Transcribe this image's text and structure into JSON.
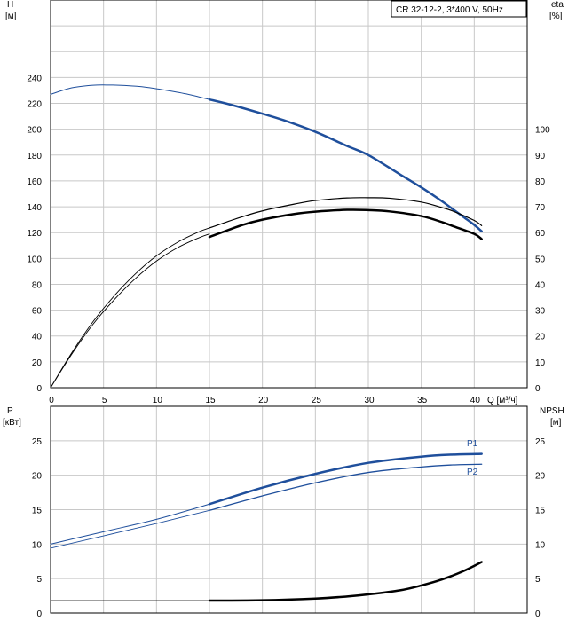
{
  "title_box": "CR 32-12-2, 3*400 V, 50Hz",
  "colors": {
    "blue": "#1f4f9c",
    "black": "#000000",
    "grid": "#c8c8c8"
  },
  "chart_data": [
    {
      "type": "line",
      "name": "upper",
      "left_axis": {
        "label_line1": "H",
        "label_line2": "[м]",
        "ticks": [
          0,
          20,
          40,
          60,
          80,
          100,
          120,
          140,
          160,
          180,
          200,
          220,
          240
        ],
        "ylim": [
          0,
          300
        ]
      },
      "right_axis": {
        "label_line1": "eta",
        "label_line2": "[%]",
        "ticks": [
          0,
          10,
          20,
          30,
          40,
          50,
          60,
          70,
          80,
          90,
          100
        ],
        "ylim": [
          0,
          150
        ]
      },
      "x_axis": {
        "label": "Q [м³/ч]",
        "ticks": [
          0,
          5,
          10,
          15,
          20,
          25,
          30,
          35,
          40
        ],
        "xlim": [
          0,
          45
        ]
      },
      "series": [
        {
          "key": "H_thin",
          "axis": "left",
          "color": "blue",
          "width": 1,
          "x": [
            0,
            2,
            4,
            5.5,
            7,
            9,
            11,
            13,
            15
          ],
          "y": [
            227,
            232,
            234,
            234.2,
            233.8,
            232.5,
            230,
            227,
            223
          ]
        },
        {
          "key": "H_thick",
          "axis": "left",
          "color": "blue",
          "width": 2.5,
          "x": [
            15,
            17,
            20,
            22,
            25,
            28,
            30,
            33,
            35,
            37,
            38,
            39,
            40,
            40.7
          ],
          "y": [
            223,
            219,
            212,
            207,
            198,
            187,
            180,
            165,
            155,
            144,
            138,
            132,
            126,
            121
          ]
        },
        {
          "key": "eta1_thin",
          "axis": "right",
          "color": "black",
          "width": 0.9,
          "x": [
            0,
            2,
            4,
            6,
            8,
            10,
            12,
            14,
            15
          ],
          "y": [
            0,
            13.5,
            25.5,
            35.5,
            44,
            51,
            56.3,
            60.3,
            61.8
          ]
        },
        {
          "key": "eta1_thick",
          "axis": "right",
          "color": "black",
          "width": 1.2,
          "x": [
            15,
            18,
            20,
            23,
            25,
            28,
            30,
            32,
            35,
            37,
            38,
            40,
            40.7
          ],
          "y": [
            61.8,
            66,
            68.4,
            71,
            72.4,
            73.4,
            73.5,
            73.3,
            71.8,
            69.6,
            68.3,
            64.7,
            62.7
          ]
        },
        {
          "key": "eta2_thin",
          "axis": "right",
          "color": "black",
          "width": 0.9,
          "x": [
            0,
            2,
            4,
            6,
            8,
            10,
            12,
            14,
            15
          ],
          "y": [
            0,
            13,
            24.5,
            34,
            42.2,
            49,
            54.2,
            58,
            59.5
          ]
        },
        {
          "key": "eta2_thick",
          "axis": "right",
          "color": "black",
          "width": 2.5,
          "x": [
            15,
            18,
            20,
            23,
            25,
            28,
            30,
            32,
            35,
            37,
            38,
            40,
            40.7
          ],
          "y": [
            58.3,
            62.8,
            65,
            67.2,
            68.1,
            68.8,
            68.7,
            68.2,
            66.4,
            64,
            62.5,
            59.5,
            57.5
          ]
        }
      ]
    },
    {
      "type": "line",
      "name": "lower",
      "left_axis": {
        "label_line1": "P",
        "label_line2": "[кВт]",
        "ticks": [
          0,
          5,
          10,
          15,
          20,
          25
        ],
        "ylim": [
          0,
          30
        ]
      },
      "right_axis": {
        "label_line1": "NPSH",
        "label_line2": "[м]",
        "ticks": [
          0,
          5,
          10,
          15,
          20,
          25
        ],
        "ylim": [
          0,
          30
        ]
      },
      "x_axis": {
        "xlim": [
          0,
          45
        ]
      },
      "series": [
        {
          "key": "P1_thin",
          "axis": "left",
          "color": "blue",
          "width": 1,
          "name": "",
          "x": [
            0,
            5,
            10,
            15
          ],
          "y": [
            10,
            11.8,
            13.6,
            15.8
          ]
        },
        {
          "key": "P1_thick",
          "axis": "left",
          "color": "blue",
          "width": 2.5,
          "name": "P1",
          "x": [
            15,
            20,
            25,
            30,
            35,
            38,
            40.7
          ],
          "y": [
            15.8,
            18.2,
            20.2,
            21.8,
            22.7,
            23,
            23.1
          ]
        },
        {
          "key": "P2_thin",
          "axis": "left",
          "color": "blue",
          "width": 0.9,
          "name": "",
          "x": [
            0,
            5,
            10,
            15
          ],
          "y": [
            9.4,
            11.2,
            13,
            14.9
          ]
        },
        {
          "key": "P2_thick",
          "axis": "left",
          "color": "blue",
          "width": 1.3,
          "name": "P2",
          "x": [
            15,
            20,
            25,
            30,
            35,
            38,
            40.7
          ],
          "y": [
            14.9,
            17,
            18.9,
            20.4,
            21.2,
            21.5,
            21.6
          ]
        },
        {
          "key": "NPSH_thin",
          "axis": "right",
          "color": "black",
          "width": 0.9,
          "name": "",
          "x": [
            0,
            15
          ],
          "y": [
            1.8,
            1.8
          ]
        },
        {
          "key": "NPSH_thick",
          "axis": "right",
          "color": "black",
          "width": 2.5,
          "name": "",
          "x": [
            15,
            20,
            25,
            28,
            30,
            33,
            35,
            37,
            39,
            40.7
          ],
          "y": [
            1.8,
            1.85,
            2.1,
            2.4,
            2.7,
            3.3,
            4,
            4.9,
            6.1,
            7.4
          ]
        }
      ],
      "labels": [
        {
          "text": "P1",
          "color": "blue",
          "x": 39.3,
          "y": 24.2
        },
        {
          "text": "P2",
          "color": "blue",
          "x": 39.3,
          "y": 20.1
        }
      ]
    }
  ]
}
